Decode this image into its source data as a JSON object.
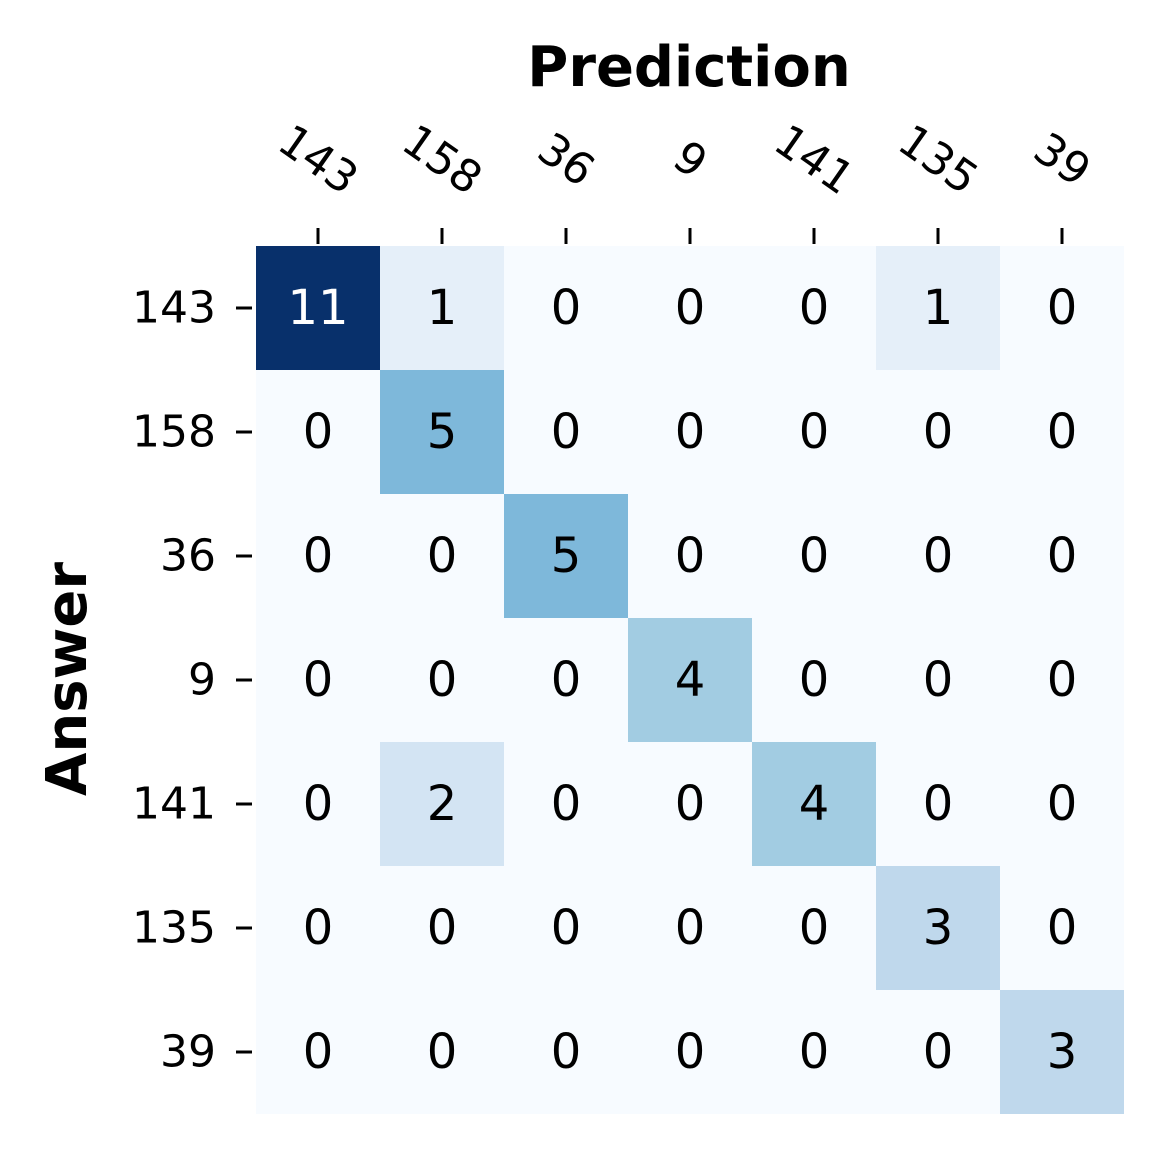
{
  "chart_data": {
    "type": "heatmap",
    "title": "",
    "xlabel": "Prediction",
    "ylabel": "Answer",
    "x_categories": [
      "143",
      "158",
      "36",
      "9",
      "141",
      "135",
      "39"
    ],
    "y_categories": [
      "143",
      "158",
      "36",
      "9",
      "141",
      "135",
      "39"
    ],
    "values": [
      [
        11,
        1,
        0,
        0,
        0,
        1,
        0
      ],
      [
        0,
        5,
        0,
        0,
        0,
        0,
        0
      ],
      [
        0,
        0,
        5,
        0,
        0,
        0,
        0
      ],
      [
        0,
        0,
        0,
        4,
        0,
        0,
        0
      ],
      [
        0,
        2,
        0,
        0,
        4,
        0,
        0
      ],
      [
        0,
        0,
        0,
        0,
        0,
        3,
        0
      ],
      [
        0,
        0,
        0,
        0,
        0,
        0,
        3
      ]
    ],
    "value_range": [
      0,
      11
    ],
    "colormap": "Blues",
    "color_low": "#f7fbff",
    "color_high": "#08306b",
    "annotations": true,
    "colorbar": false,
    "grid": false,
    "x_axis_position": "top",
    "x_tick_rotation_deg": -35
  }
}
